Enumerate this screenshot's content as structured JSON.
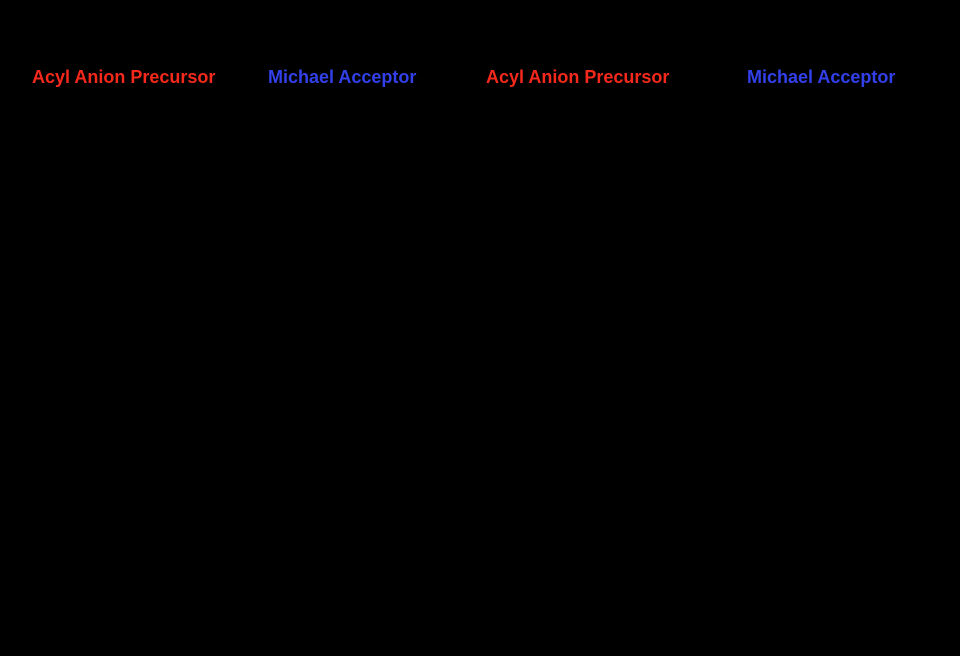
{
  "figure": {
    "background_color": "#000000",
    "description_note": "Chemical reaction scheme figure; only colored role labels are visible against the black background",
    "label_colors": {
      "acyl_anion_precursor": "#F5291B",
      "michael_acceptor": "#3240EA"
    },
    "labels": [
      {
        "text": "Acyl Anion Precursor",
        "color": "#F5291B"
      },
      {
        "text": "Michael Acceptor",
        "color": "#3240EA"
      },
      {
        "text": "Acyl Anion Precursor",
        "color": "#F5291B"
      },
      {
        "text": "Michael Acceptor",
        "color": "#3240EA"
      }
    ]
  }
}
